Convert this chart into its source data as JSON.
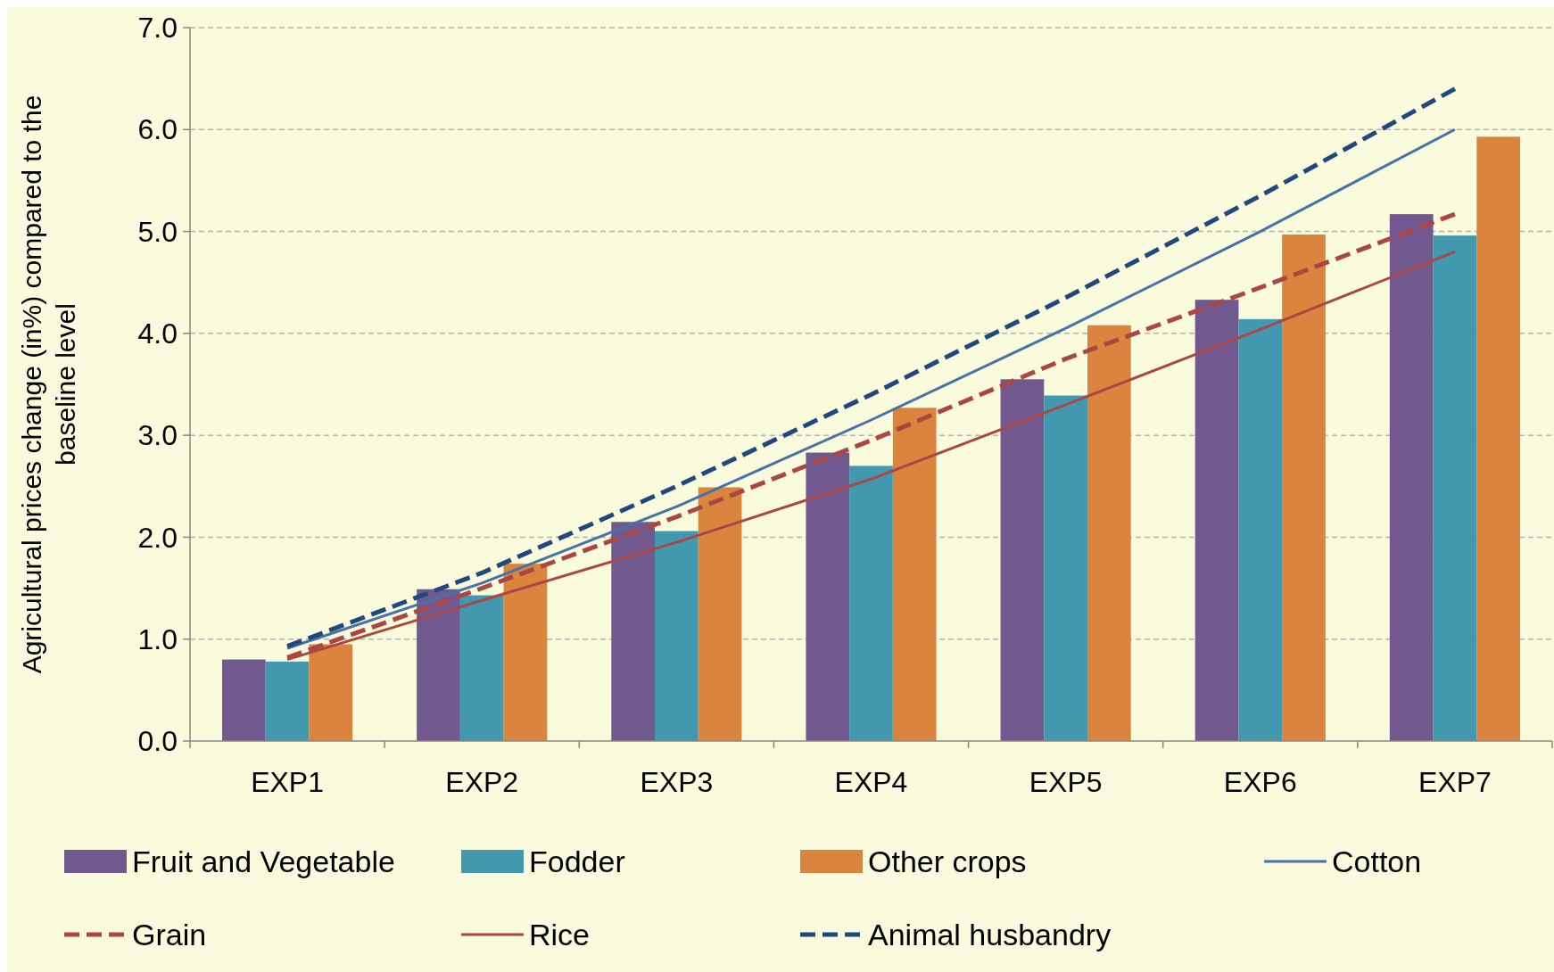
{
  "chart_data": {
    "type": "bar",
    "ylabel": "Agricultural prices change (in%) compared to the baseline level",
    "categories": [
      "EXP1",
      "EXP2",
      "EXP3",
      "EXP4",
      "EXP5",
      "EXP6",
      "EXP7"
    ],
    "series": [
      {
        "name": "Fruit and Vegetable",
        "color": "#71588f",
        "values": [
          0.8,
          1.49,
          2.15,
          2.83,
          3.55,
          4.33,
          5.17
        ]
      },
      {
        "name": "Fodder",
        "color": "#4198af",
        "values": [
          0.78,
          1.43,
          2.06,
          2.7,
          3.39,
          4.14,
          4.96
        ]
      },
      {
        "name": "Other crops",
        "color": "#db843d",
        "values": [
          0.95,
          1.74,
          2.49,
          3.27,
          4.08,
          4.97,
          5.93
        ]
      },
      {
        "name": "Cotton",
        "type": "line",
        "line_style": "solid",
        "color": "#4572a7",
        "values": [
          0.91,
          1.55,
          2.3,
          3.15,
          4.05,
          5.0,
          6.0
        ]
      },
      {
        "name": "Grain",
        "type": "line",
        "line_style": "dashed",
        "color": "#aa4643",
        "values": [
          0.82,
          1.5,
          2.2,
          2.95,
          3.75,
          4.45,
          5.17
        ]
      },
      {
        "name": "Rice",
        "type": "line",
        "line_style": "solid",
        "color": "#aa4643",
        "values": [
          0.8,
          1.38,
          1.95,
          2.57,
          3.3,
          4.04,
          4.8
        ]
      },
      {
        "name": "Animal husbandry",
        "type": "line",
        "line_style": "dashed",
        "color": "#1f497d",
        "values": [
          0.93,
          1.65,
          2.5,
          3.4,
          4.35,
          5.35,
          6.4
        ]
      }
    ],
    "ylim": [
      0,
      7
    ],
    "yticks": [
      {
        "value": 0,
        "label": "0.0"
      },
      {
        "value": 1,
        "label": "1.0"
      },
      {
        "value": 2,
        "label": "2.0"
      },
      {
        "value": 3,
        "label": "3.0"
      },
      {
        "value": 4,
        "label": "4.0"
      },
      {
        "value": 5,
        "label": "5.0"
      },
      {
        "value": 6,
        "label": "6.0"
      },
      {
        "value": 7,
        "label": "7.0"
      }
    ],
    "grid": "y",
    "legend": "bottom",
    "marker": "none"
  }
}
